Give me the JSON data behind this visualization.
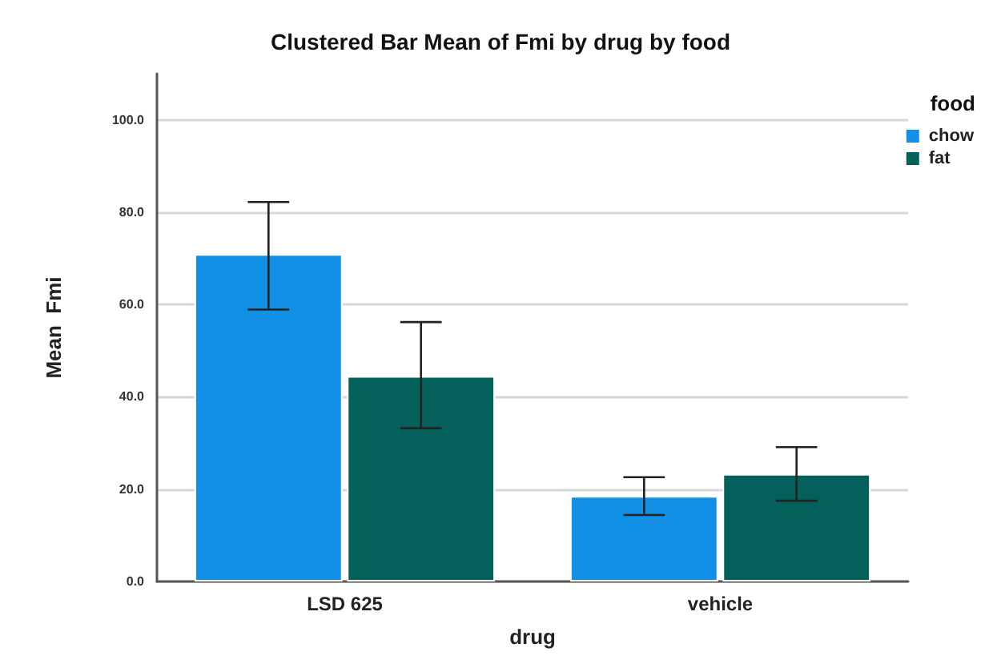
{
  "chart_data": {
    "type": "bar",
    "title": "Clustered Bar Mean of Fmi by drug by food",
    "xlabel": "drug",
    "ylabel": "Mean  Fmi",
    "legend_title": "food",
    "categories": [
      "LSD 625",
      "vehicle"
    ],
    "series": [
      {
        "name": "chow",
        "color": "#1290e6",
        "values": [
          70.9,
          18.5
        ],
        "errors": [
          [
            58.9,
            82.2
          ],
          [
            14.4,
            22.6
          ]
        ]
      },
      {
        "name": "fat",
        "color": "#03605a",
        "values": [
          44.5,
          23.3
        ],
        "errors": [
          [
            33.2,
            56.2
          ],
          [
            17.5,
            29.1
          ]
        ]
      }
    ],
    "ylim": [
      0,
      110
    ],
    "yticks": [
      {
        "value": 0,
        "label": "0.0"
      },
      {
        "value": 20,
        "label": "20.0"
      },
      {
        "value": 40,
        "label": "40.0"
      },
      {
        "value": 60,
        "label": "60.0"
      },
      {
        "value": 80,
        "label": "80.0"
      },
      {
        "value": 100,
        "label": "100.0"
      }
    ],
    "grid": "y",
    "legend": "top right"
  }
}
